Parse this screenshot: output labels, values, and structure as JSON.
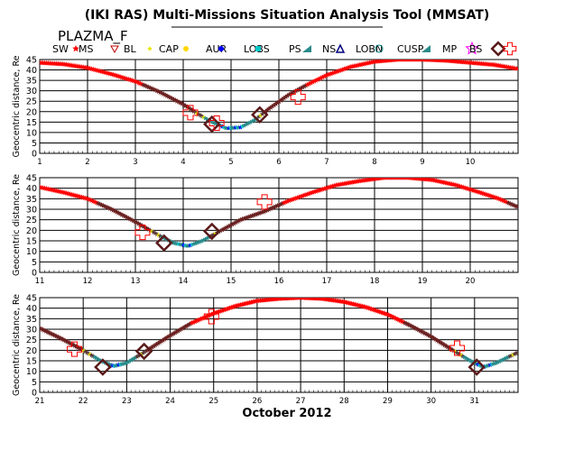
{
  "header": {
    "title": "(IKI RAS) Multi-Missions Situation Analysis Tool (MMSAT)",
    "satellite": "PLAZMA_F"
  },
  "legend": [
    {
      "label": "SW",
      "symbol": "star",
      "color": "#ff0000"
    },
    {
      "label": "MS",
      "symbol": "triangle-down",
      "color": "#c00000"
    },
    {
      "label": "BL",
      "symbol": "star-small",
      "color": "#e6e600"
    },
    {
      "label": "CAP",
      "symbol": "dot",
      "color": "#ffd700"
    },
    {
      "label": "AUR",
      "symbol": "dot",
      "color": "#0000ff"
    },
    {
      "label": "LOBS",
      "symbol": "square",
      "color": "#00c8c8"
    },
    {
      "label": "PS",
      "symbol": "triangle",
      "color": "#2a8a8a"
    },
    {
      "label": "NS",
      "symbol": "triangle-open",
      "color": "#000080"
    },
    {
      "label": "LOBN",
      "symbol": "circle-open",
      "color": "#008080"
    },
    {
      "label": "CUSP",
      "symbol": "triangle",
      "color": "#2a8a8a"
    },
    {
      "label": "MP",
      "symbol": "star-open",
      "color": "#ff00ff"
    },
    {
      "label": "BS",
      "symbol": "diamond-open",
      "color": "#5a1a1a"
    },
    {
      "label": "",
      "symbol": "cross-open",
      "color": "#ff0000"
    }
  ],
  "chart_data": [
    {
      "type": "line",
      "ylabel": "Geocentric distance, Re",
      "xlim": [
        1,
        11
      ],
      "ylim": [
        0,
        45
      ],
      "x_ticks": [
        "1",
        "2",
        "3",
        "4",
        "5",
        "6",
        "7",
        "8",
        "9",
        "10"
      ],
      "y_ticks": [
        "0",
        "5",
        "10",
        "15",
        "20",
        "25",
        "30",
        "35",
        "40",
        "45"
      ],
      "grid": true,
      "series": [
        {
          "symbol": "red-stars",
          "x": [
            1.0,
            1.5,
            2.0,
            2.5,
            3.0,
            3.5,
            4.0,
            4.3,
            4.6,
            4.9,
            5.2,
            5.5,
            5.8,
            6.2,
            6.6,
            7.0,
            7.5,
            8.0,
            8.5,
            9.0,
            9.5,
            10.0,
            10.5,
            11.0
          ],
          "y": [
            43.5,
            42.8,
            41,
            38,
            34.5,
            29.5,
            23.5,
            19,
            15,
            12,
            12.5,
            16,
            21.5,
            28,
            33,
            37.5,
            41.5,
            44,
            45,
            45,
            44.5,
            43.5,
            42.5,
            40.5
          ]
        }
      ],
      "markers": [
        {
          "symbol": "cross-open",
          "x": 4.15,
          "y": 19.5
        },
        {
          "symbol": "diamond-open",
          "x": 4.6,
          "y": 14
        },
        {
          "symbol": "cross-open",
          "x": 4.7,
          "y": 14.5
        },
        {
          "symbol": "diamond-open",
          "x": 5.6,
          "y": 18.5
        },
        {
          "symbol": "cross-open",
          "x": 6.4,
          "y": 27
        }
      ]
    },
    {
      "type": "line",
      "ylabel": "Geocentric distance, Re",
      "xlim": [
        11,
        21
      ],
      "ylim": [
        0,
        45
      ],
      "x_ticks": [
        "11",
        "12",
        "13",
        "14",
        "15",
        "16",
        "17",
        "18",
        "19",
        "20"
      ],
      "y_ticks": [
        "0",
        "5",
        "10",
        "15",
        "20",
        "25",
        "30",
        "35",
        "40",
        "45"
      ],
      "grid": true,
      "series": [
        {
          "symbol": "red-stars",
          "x": [
            11.0,
            11.5,
            12.0,
            12.5,
            13.0,
            13.5,
            13.8,
            14.1,
            14.4,
            14.8,
            15.2,
            15.7,
            16.2,
            16.7,
            17.2,
            17.7,
            18.2,
            18.7,
            19.2,
            19.7,
            20.2,
            20.6,
            21.0
          ],
          "y": [
            40.5,
            38,
            35,
            30,
            24,
            17.5,
            14,
            12.5,
            15,
            20,
            25,
            29,
            34,
            38,
            41.5,
            43.5,
            45,
            45,
            44,
            41.5,
            38,
            35,
            31
          ]
        }
      ],
      "markers": [
        {
          "symbol": "cross-open",
          "x": 13.15,
          "y": 19
        },
        {
          "symbol": "diamond-open",
          "x": 13.6,
          "y": 14
        },
        {
          "symbol": "diamond-open",
          "x": 14.6,
          "y": 19.5
        },
        {
          "symbol": "cross-open",
          "x": 15.7,
          "y": 33.5
        }
      ]
    },
    {
      "type": "line",
      "xlabel": "October 2012",
      "ylabel": "Geocentric distance, Re",
      "xlim": [
        21,
        32
      ],
      "ylim": [
        0,
        45
      ],
      "x_ticks": [
        "21",
        "22",
        "23",
        "24",
        "25",
        "26",
        "27",
        "28",
        "29",
        "30",
        "31"
      ],
      "y_ticks": [
        "0",
        "5",
        "10",
        "15",
        "20",
        "25",
        "30",
        "35",
        "40",
        "45"
      ],
      "grid": true,
      "series": [
        {
          "symbol": "red-stars",
          "x": [
            21.0,
            21.5,
            22.0,
            22.4,
            22.7,
            23.0,
            23.4,
            24.0,
            24.5,
            25.0,
            25.5,
            26.0,
            26.5,
            27.0,
            27.5,
            28.0,
            28.5,
            29.0,
            29.5,
            30.0,
            30.5,
            30.9,
            31.2,
            31.5,
            32.0
          ],
          "y": [
            30.5,
            25.5,
            20,
            15,
            12.5,
            14,
            19,
            27,
            33,
            37.5,
            41,
            43.5,
            44.5,
            45,
            44.5,
            43,
            40.5,
            37,
            32,
            26.5,
            20,
            15,
            12,
            14,
            19
          ]
        }
      ],
      "markers": [
        {
          "symbol": "cross-open",
          "x": 21.8,
          "y": 20.5
        },
        {
          "symbol": "diamond-open",
          "x": 22.45,
          "y": 12
        },
        {
          "symbol": "diamond-open",
          "x": 23.4,
          "y": 19.5
        },
        {
          "symbol": "cross-open",
          "x": 24.95,
          "y": 36
        },
        {
          "symbol": "cross-open",
          "x": 30.6,
          "y": 21
        },
        {
          "symbol": "diamond-open",
          "x": 31.05,
          "y": 12
        }
      ]
    }
  ]
}
